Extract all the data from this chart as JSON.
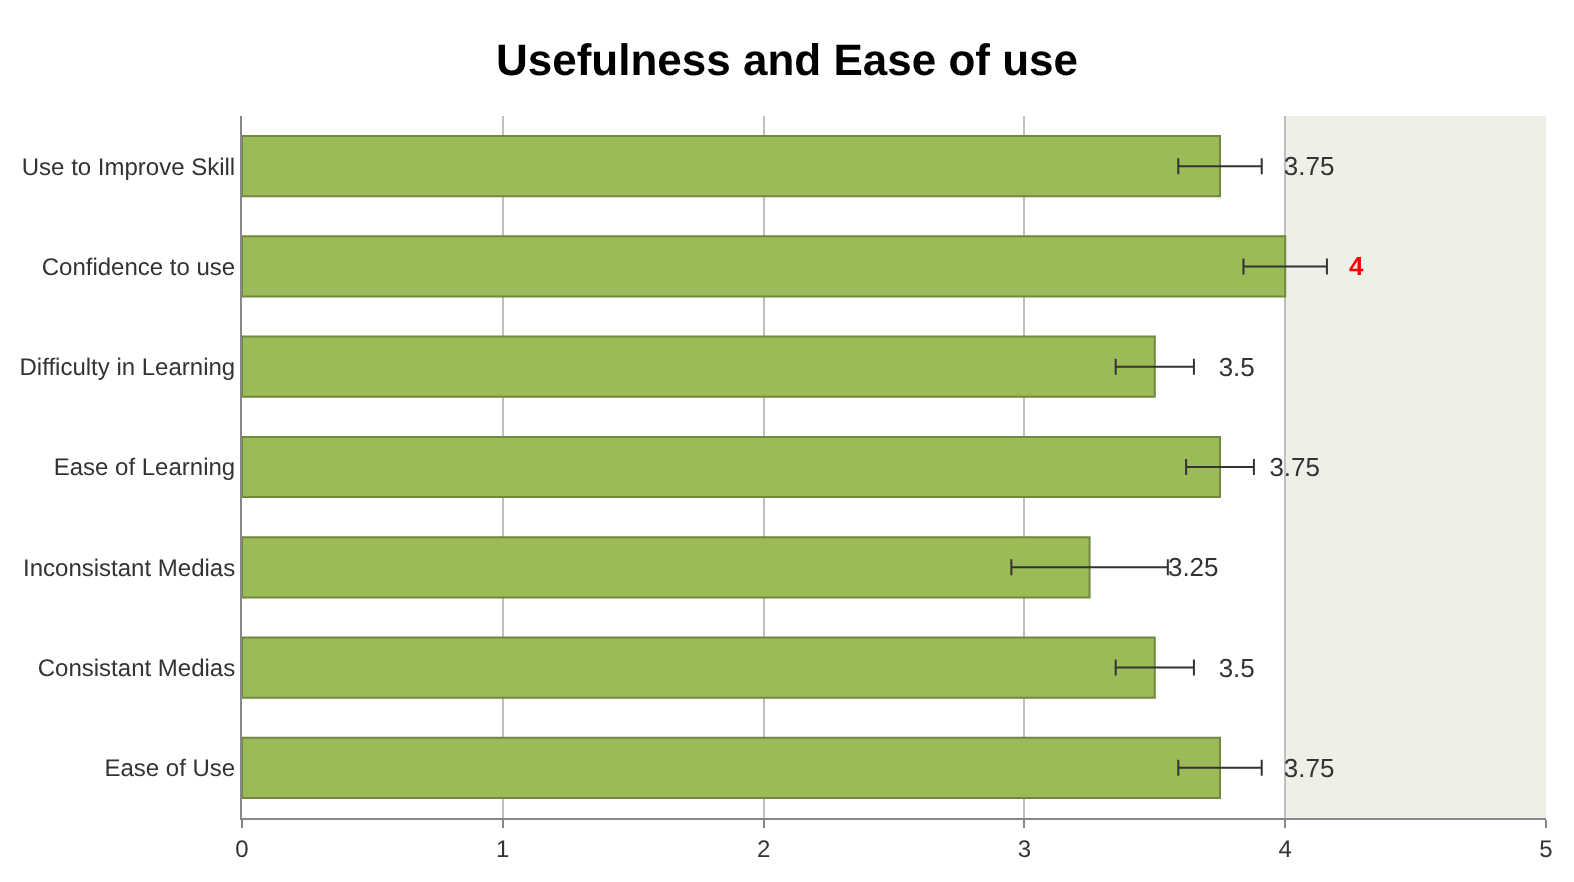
{
  "chart_data": {
    "type": "bar",
    "orientation": "horizontal",
    "title": "Usefulness and Ease of use",
    "categories": [
      "Use to Improve Skill",
      "Confidence to use",
      "Difficulty in Learning",
      "Ease of Learning",
      "Inconsistant Medias",
      "Consistant Medias",
      "Ease of Use"
    ],
    "values": [
      3.75,
      4,
      3.5,
      3.75,
      3.25,
      3.5,
      3.75
    ],
    "errors": [
      0.16,
      0.16,
      0.15,
      0.13,
      0.3,
      0.15,
      0.16
    ],
    "color": "#9bbb59",
    "data_labels": true,
    "xlim": [
      0,
      5
    ],
    "xticks": [
      0,
      1,
      2,
      3,
      4,
      5
    ],
    "bands": [
      {
        "axis": "x",
        "from": 4,
        "to": 5,
        "color": "#eef0e8"
      }
    ],
    "grid": "x",
    "legend": false
  }
}
